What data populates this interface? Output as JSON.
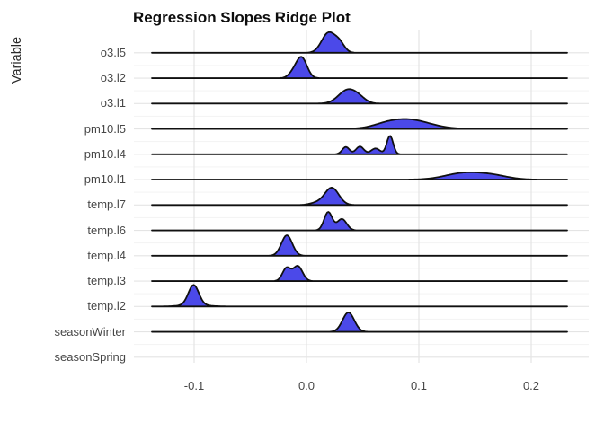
{
  "title": "Regression Slopes Ridge Plot",
  "y_axis_title": "Variable",
  "x_axis": {
    "tick_labels": [
      "-0.1",
      "0.0",
      "0.1",
      "0.2"
    ],
    "tick_values": [
      -0.1,
      0.0,
      0.1,
      0.2
    ]
  },
  "colors": {
    "ridge_fill": "#4B49E9",
    "ridge_stroke": "#101010",
    "grid_major": "#e4e4e4",
    "grid_minor": "#f3f3f3",
    "axis_text": "#474747"
  },
  "chart_data": {
    "type": "area",
    "variant": "ridgeline",
    "title": "Regression Slopes Ridge Plot",
    "xlabel": "",
    "ylabel": "Variable",
    "xlim": [
      -0.147,
      0.25
    ],
    "baseline_range": [
      -0.138,
      0.232
    ],
    "grid": "major-x-and-y",
    "legend": "none",
    "categories": [
      "o3.l5",
      "o3.l2",
      "o3.l1",
      "pm10.l5",
      "pm10.l4",
      "pm10.l1",
      "temp.l7",
      "temp.l6",
      "temp.l4",
      "temp.l3",
      "temp.l2",
      "seasonWinter",
      "seasonSpring"
    ],
    "series": [
      {
        "name": "o3.l5",
        "has_density": true,
        "modes": [
          0.02
        ],
        "components": [
          {
            "mu": 0.0195,
            "sigma": 0.006,
            "amp": 0.92
          },
          {
            "mu": 0.0295,
            "sigma": 0.0045,
            "amp": 0.4
          }
        ]
      },
      {
        "name": "o3.l2",
        "has_density": true,
        "modes": [
          -0.004
        ],
        "components": [
          {
            "mu": -0.0045,
            "sigma": 0.0048,
            "amp": 0.97
          },
          {
            "mu": -0.0125,
            "sigma": 0.004,
            "amp": 0.18
          }
        ]
      },
      {
        "name": "o3.l1",
        "has_density": true,
        "modes": [
          0.037
        ],
        "components": [
          {
            "mu": 0.0365,
            "sigma": 0.008,
            "amp": 0.62
          },
          {
            "mu": 0.047,
            "sigma": 0.006,
            "amp": 0.18
          }
        ]
      },
      {
        "name": "pm10.l5",
        "has_density": true,
        "modes": [
          0.09
        ],
        "components": [
          {
            "mu": 0.09,
            "sigma": 0.019,
            "amp": 0.44
          },
          {
            "mu": 0.07,
            "sigma": 0.011,
            "amp": 0.08
          }
        ]
      },
      {
        "name": "pm10.l4",
        "has_density": true,
        "modes": [
          0.035,
          0.048,
          0.062,
          0.074
        ],
        "components": [
          {
            "mu": 0.035,
            "sigma": 0.0032,
            "amp": 0.34
          },
          {
            "mu": 0.0475,
            "sigma": 0.0035,
            "amp": 0.36
          },
          {
            "mu": 0.0615,
            "sigma": 0.004,
            "amp": 0.27
          },
          {
            "mu": 0.0743,
            "sigma": 0.0028,
            "amp": 0.86
          }
        ]
      },
      {
        "name": "pm10.l1",
        "has_density": true,
        "modes": [
          0.145
        ],
        "components": [
          {
            "mu": 0.14,
            "sigma": 0.0165,
            "amp": 0.3
          },
          {
            "mu": 0.166,
            "sigma": 0.014,
            "amp": 0.17
          }
        ]
      },
      {
        "name": "temp.l7",
        "has_density": true,
        "modes": [
          0.022
        ],
        "components": [
          {
            "mu": 0.0225,
            "sigma": 0.0062,
            "amp": 0.8
          },
          {
            "mu": 0.009,
            "sigma": 0.006,
            "amp": 0.1
          }
        ]
      },
      {
        "name": "temp.l6",
        "has_density": true,
        "modes": [
          0.019,
          0.032
        ],
        "components": [
          {
            "mu": 0.0193,
            "sigma": 0.0036,
            "amp": 0.85
          },
          {
            "mu": 0.0315,
            "sigma": 0.0042,
            "amp": 0.53
          }
        ]
      },
      {
        "name": "temp.l4",
        "has_density": true,
        "modes": [
          -0.0175
        ],
        "components": [
          {
            "mu": -0.0175,
            "sigma": 0.0048,
            "amp": 0.95
          }
        ]
      },
      {
        "name": "temp.l3",
        "has_density": true,
        "modes": [
          -0.018,
          -0.008
        ],
        "components": [
          {
            "mu": -0.0178,
            "sigma": 0.0036,
            "amp": 0.6
          },
          {
            "mu": -0.0078,
            "sigma": 0.0042,
            "amp": 0.7
          }
        ]
      },
      {
        "name": "temp.l2",
        "has_density": true,
        "modes": [
          -0.1
        ],
        "components": [
          {
            "mu": -0.1005,
            "sigma": 0.0046,
            "amp": 0.92
          },
          {
            "mu": -0.1,
            "sigma": 0.011,
            "amp": 0.08
          }
        ]
      },
      {
        "name": "seasonWinter",
        "has_density": true,
        "modes": [
          0.037
        ],
        "components": [
          {
            "mu": 0.0373,
            "sigma": 0.0052,
            "amp": 0.9
          }
        ]
      },
      {
        "name": "seasonSpring",
        "has_density": false,
        "modes": [],
        "components": []
      }
    ]
  }
}
